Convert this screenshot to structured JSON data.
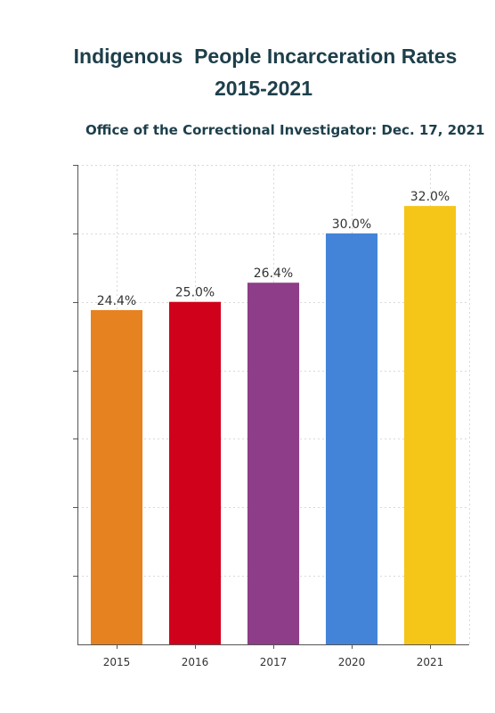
{
  "chart_data": {
    "type": "bar",
    "title_lines": [
      "Indigenous  People Incarceration Rates",
      "2015-2021"
    ],
    "subtitle": "Office of the Correctional Investigator: Dec. 17, 2021",
    "xlabel": "",
    "ylabel": "",
    "categories": [
      "2015",
      "2016",
      "2017",
      "2020",
      "2021"
    ],
    "values": [
      24.4,
      25.0,
      26.4,
      30.0,
      32.0
    ],
    "value_labels": [
      "24.4%",
      "25.0%",
      "26.4%",
      "30.0%",
      "32.0%"
    ],
    "colors": [
      "#e6821f",
      "#d0021b",
      "#8e3d88",
      "#4384d8",
      "#f5c518"
    ],
    "ylim": [
      0,
      35
    ],
    "y_gridlines": [
      0,
      5,
      10,
      15,
      20,
      25,
      30,
      35
    ],
    "y_tick_labels_shown": false,
    "grid": true,
    "legend": "none"
  }
}
